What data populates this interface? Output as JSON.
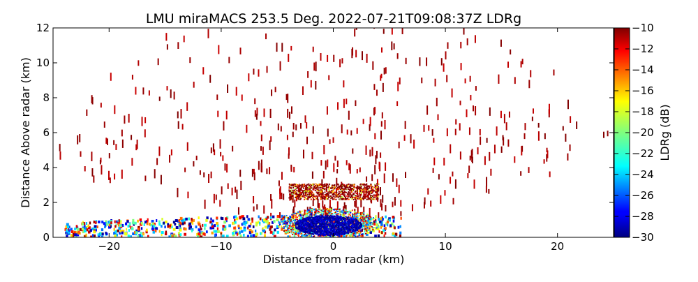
{
  "chart_data": {
    "type": "heatmap",
    "title": "LMU miraMACS 253.5 Deg. 2022-07-21T09:08:37Z  LDRg",
    "xlabel": "Distance from radar (km)",
    "ylabel": "Distance Above radar  (km)",
    "xlim": [
      -25,
      25
    ],
    "ylim": [
      0,
      12
    ],
    "x_ticks": [
      -20,
      -10,
      0,
      10,
      20
    ],
    "y_ticks": [
      0,
      2,
      4,
      6,
      8,
      10,
      12
    ],
    "colorbar": {
      "label": "LDRg (dB)",
      "range": [
        -30,
        -10
      ],
      "ticks": [
        -10,
        -12,
        -14,
        -16,
        -18,
        -20,
        -22,
        -24,
        -26,
        -28,
        -30
      ],
      "colormap": "jet"
    },
    "regions": [
      {
        "name": "core",
        "x": [
          -3.5,
          2.5
        ],
        "y": [
          0.15,
          1.3
        ],
        "ldr_db": -29
      },
      {
        "name": "core-rim",
        "x": [
          -5,
          4.5
        ],
        "y": [
          0.05,
          1.7
        ],
        "ldr_db": -18
      },
      {
        "name": "melting-layer",
        "x": [
          -4,
          4
        ],
        "y": [
          2.2,
          3.1
        ],
        "ldr_db": -13
      },
      {
        "name": "near-ground-band",
        "x": [
          -24,
          6
        ],
        "y": [
          0.1,
          1.4
        ],
        "ldr_db": -20
      },
      {
        "name": "clutter-streaks",
        "x": [
          -23,
          23
        ],
        "y": [
          0.5,
          12
        ],
        "ldr_db": -10
      }
    ]
  }
}
